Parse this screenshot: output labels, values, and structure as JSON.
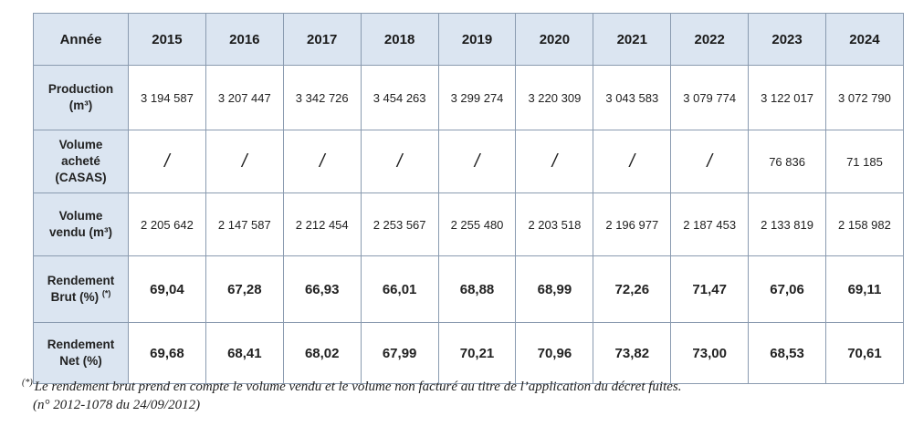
{
  "table": {
    "header_label": "Année",
    "years": [
      "2015",
      "2016",
      "2017",
      "2018",
      "2019",
      "2020",
      "2021",
      "2022",
      "2023",
      "2024"
    ],
    "rows": {
      "production": {
        "label_line1": "Production",
        "label_line2": "(m³)",
        "values": [
          "3 194 587",
          "3 207 447",
          "3 342 726",
          "3 454 263",
          "3 299 274",
          "3 220 309",
          "3 043 583",
          "3 079 774",
          "3 122 017",
          "3 072 790"
        ]
      },
      "purchased": {
        "label_line1": "Volume",
        "label_line2": "acheté",
        "label_line3": "(CASAS)",
        "values": [
          "/",
          "/",
          "/",
          "/",
          "/",
          "/",
          "/",
          "/",
          "76 836",
          "71 185"
        ]
      },
      "sold": {
        "label_line1": "Volume",
        "label_line2": "vendu (m³)",
        "values": [
          "2 205 642",
          "2 147 587",
          "2 212 454",
          "2 253 567",
          "2 255 480",
          "2 203 518",
          "2 196 977",
          "2 187 453",
          "2 133 819",
          "2 158 982"
        ]
      },
      "gross_yield": {
        "label_line1": "Rendement",
        "label_line2": "Brut (%)",
        "label_mark": "(*)",
        "values": [
          "69,04",
          "67,28",
          "66,93",
          "66,01",
          "68,88",
          "68,99",
          "72,26",
          "71,47",
          "67,06",
          "69,11"
        ]
      },
      "net_yield": {
        "label_line1": "Rendement",
        "label_line2": "Net (%)",
        "values": [
          "69,68",
          "68,41",
          "68,02",
          "67,99",
          "70,21",
          "70,96",
          "73,82",
          "73,00",
          "68,53",
          "70,61"
        ]
      }
    }
  },
  "footnote": {
    "mark": "(*)",
    "line1": "Le rendement brut prend en compte le volume vendu et le volume non facturé au titre de l’application du décret fuites.",
    "line2": "(n° 2012-1078 du 24/09/2012)"
  }
}
